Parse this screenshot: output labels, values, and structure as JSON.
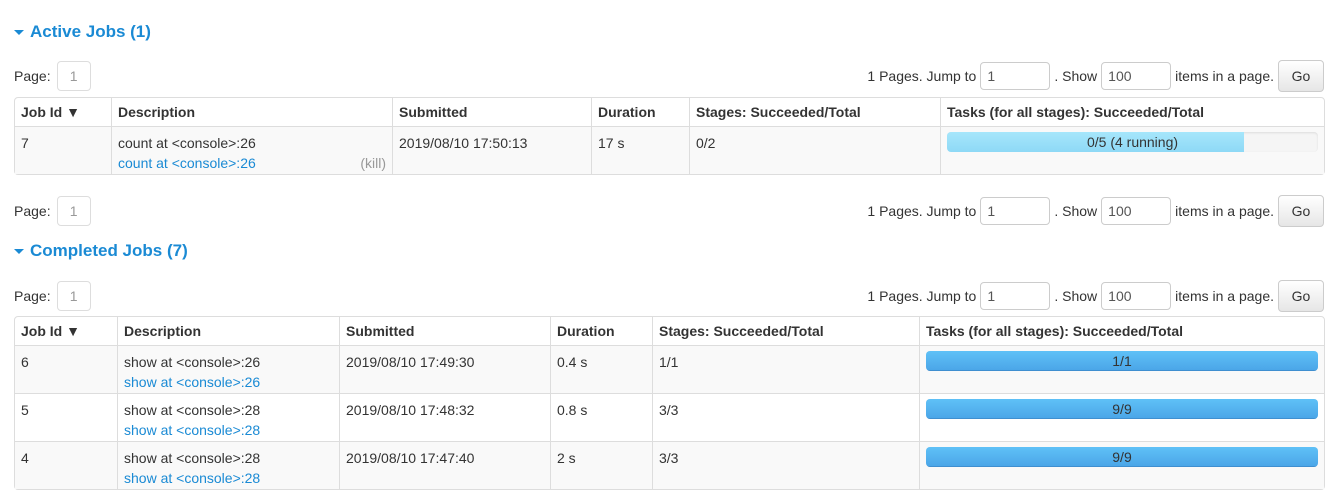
{
  "active": {
    "title": "Active Jobs (1)",
    "pag": {
      "page_label": "Page:",
      "page": "1",
      "pages_text": "1 Pages. Jump to",
      "jump": "1",
      "show_text": ". Show",
      "show": "100",
      "items_text": "items in a page.",
      "go": "Go"
    },
    "headers": [
      "Job Id ▼",
      "Description",
      "Submitted",
      "Duration",
      "Stages: Succeeded/Total",
      "Tasks (for all stages): Succeeded/Total"
    ],
    "rows": [
      {
        "id": "7",
        "desc": "count at <console>:26",
        "link": "count at <console>:26",
        "kill": "(kill)",
        "submitted": "2019/08/10 17:50:13",
        "duration": "17 s",
        "stages": "0/2",
        "tasks": "0/5 (4 running)",
        "succeeded": 0,
        "running": 4,
        "total": 5
      }
    ]
  },
  "completed": {
    "title": "Completed Jobs (7)",
    "pag": {
      "page_label": "Page:",
      "page": "1",
      "pages_text": "1 Pages. Jump to",
      "jump": "1",
      "show_text": ". Show",
      "show": "100",
      "items_text": "items in a page.",
      "go": "Go"
    },
    "headers": [
      "Job Id ▼",
      "Description",
      "Submitted",
      "Duration",
      "Stages: Succeeded/Total",
      "Tasks (for all stages): Succeeded/Total"
    ],
    "rows": [
      {
        "id": "6",
        "desc": "show at <console>:26",
        "link": "show at <console>:26",
        "submitted": "2019/08/10 17:49:30",
        "duration": "0.4 s",
        "stages": "1/1",
        "tasks": "1/1",
        "succeeded": 1,
        "total": 1
      },
      {
        "id": "5",
        "desc": "show at <console>:28",
        "link": "show at <console>:28",
        "submitted": "2019/08/10 17:48:32",
        "duration": "0.8 s",
        "stages": "3/3",
        "tasks": "9/9",
        "succeeded": 9,
        "total": 9
      },
      {
        "id": "4",
        "desc": "show at <console>:28",
        "link": "show at <console>:28",
        "submitted": "2019/08/10 17:47:40",
        "duration": "2 s",
        "stages": "3/3",
        "tasks": "9/9",
        "succeeded": 9,
        "total": 9
      }
    ]
  },
  "colors": {
    "link": "#1a8ad4",
    "completed_bar": "#4ba6e8",
    "running_bar": "#8ed9f6"
  }
}
